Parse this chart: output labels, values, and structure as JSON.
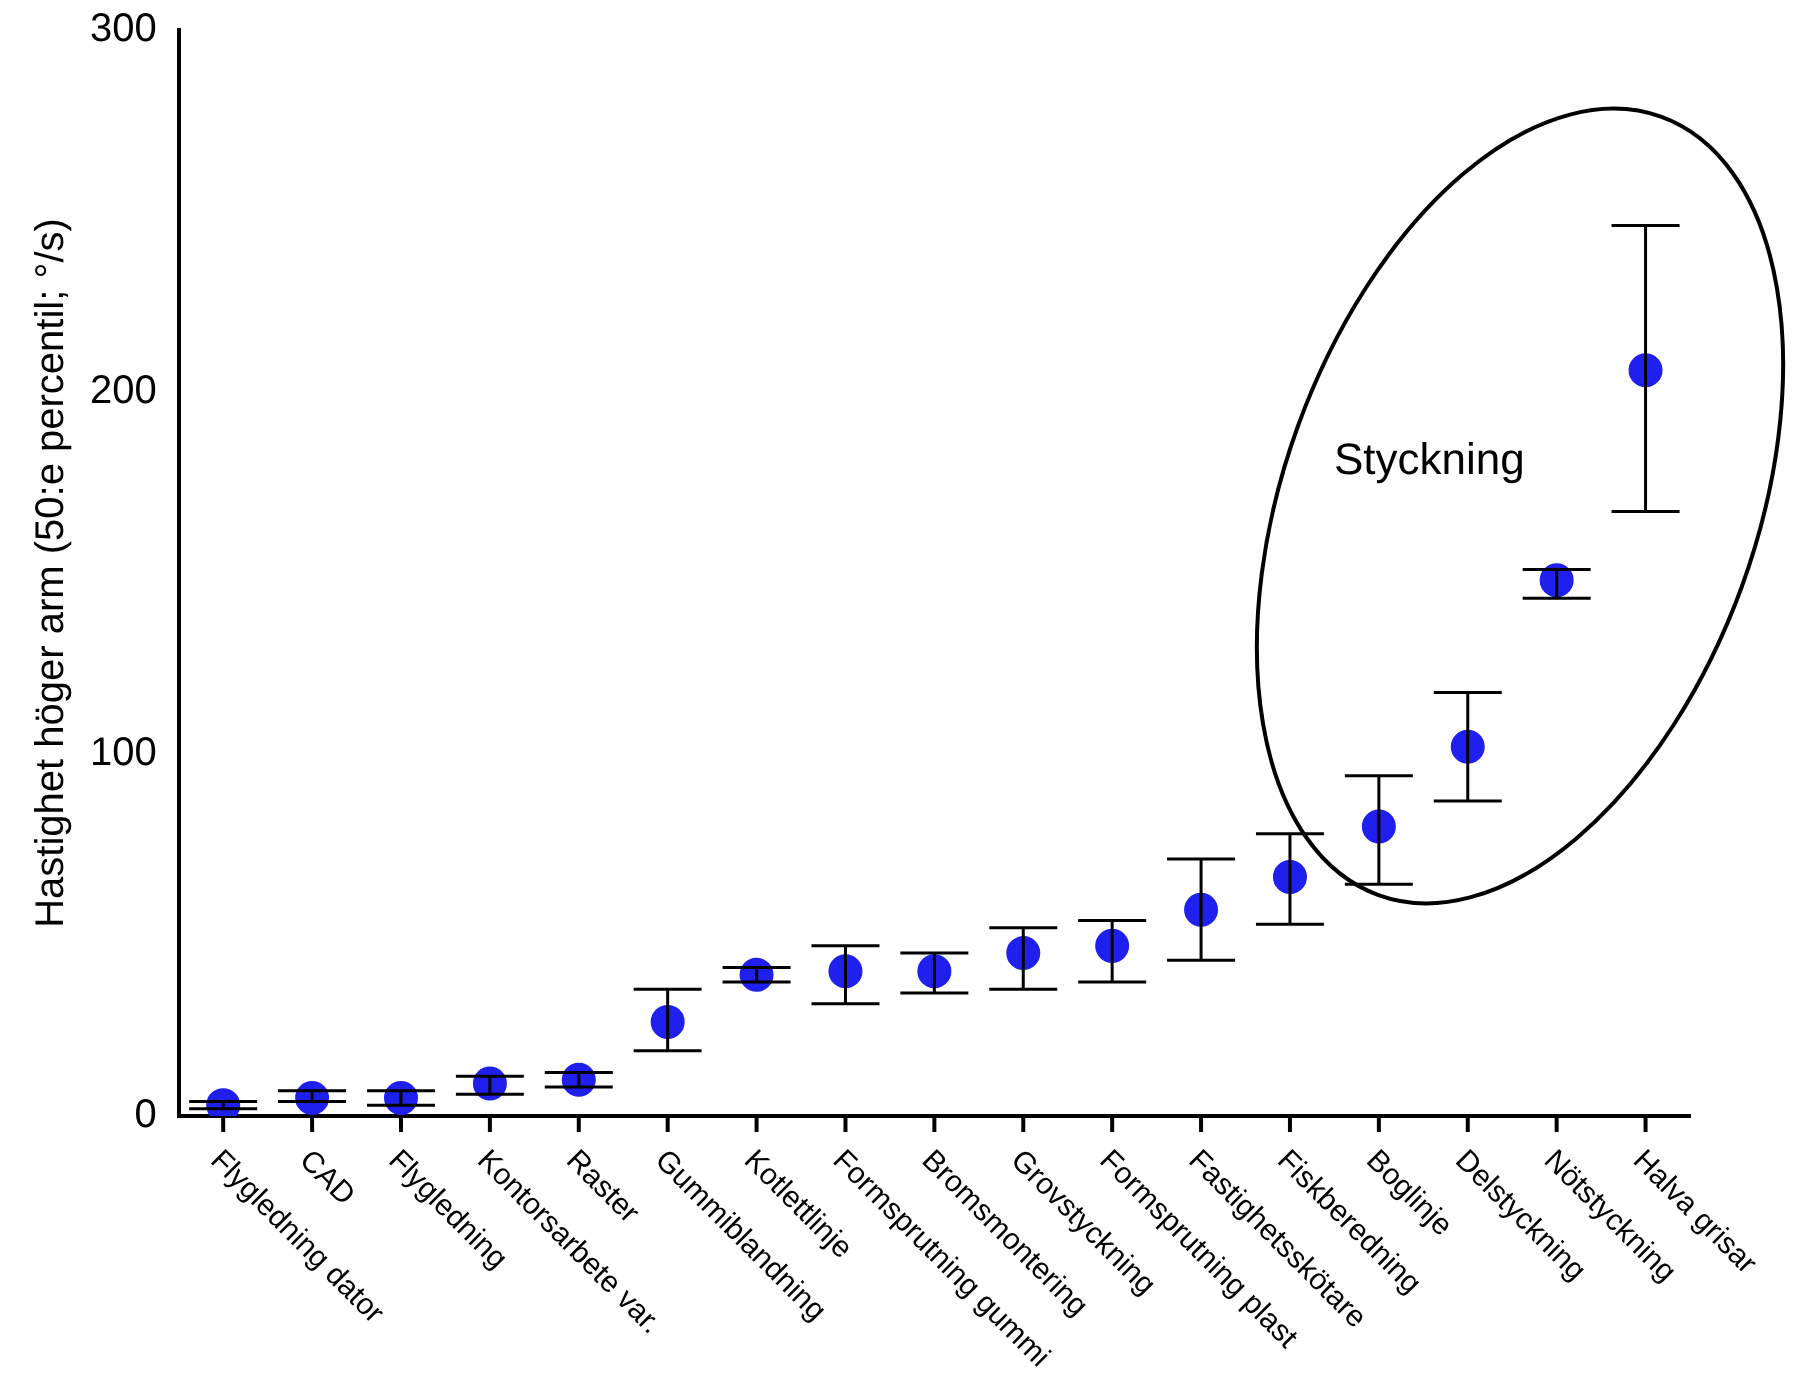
{
  "chart_data": {
    "type": "scatter",
    "ylabel": "Hastighet höger arm (50:e percentil; °/s)",
    "categories": [
      "Flygledning dator",
      "CAD",
      "Flygledning",
      "Kontorsarbete var.",
      "Raster",
      "Gummiblandning",
      "Kotlettlinje",
      "Formsprutning gummi",
      "Bromsmontering",
      "Grovstyckning",
      "Formsprutning plast",
      "Fastighetsskötare",
      "Fiskberedning",
      "Boglinje",
      "Delstyckning",
      "Nötstyckning",
      "Halva grisar"
    ],
    "series": [
      {
        "color": "#1f1fee",
        "values": [
          3,
          5,
          5,
          9,
          10,
          26,
          39,
          40,
          40,
          45,
          47,
          57,
          66,
          80,
          102,
          148,
          206
        ],
        "errors": [
          [
            2,
            4
          ],
          [
            4,
            7
          ],
          [
            3,
            7
          ],
          [
            6,
            11
          ],
          [
            8,
            12
          ],
          [
            18,
            35
          ],
          [
            37,
            41
          ],
          [
            31,
            47
          ],
          [
            34,
            45
          ],
          [
            35,
            52
          ],
          [
            37,
            54
          ],
          [
            43,
            71
          ],
          [
            53,
            78
          ],
          [
            64,
            94
          ],
          [
            87,
            117
          ],
          [
            143,
            151
          ],
          [
            167,
            246
          ]
        ]
      }
    ],
    "ylim": [
      0,
      300
    ],
    "yticks": [
      0,
      100,
      200,
      300
    ],
    "grid": false,
    "legend": false,
    "marker": "circle",
    "annotations": [
      "Styckning"
    ]
  }
}
